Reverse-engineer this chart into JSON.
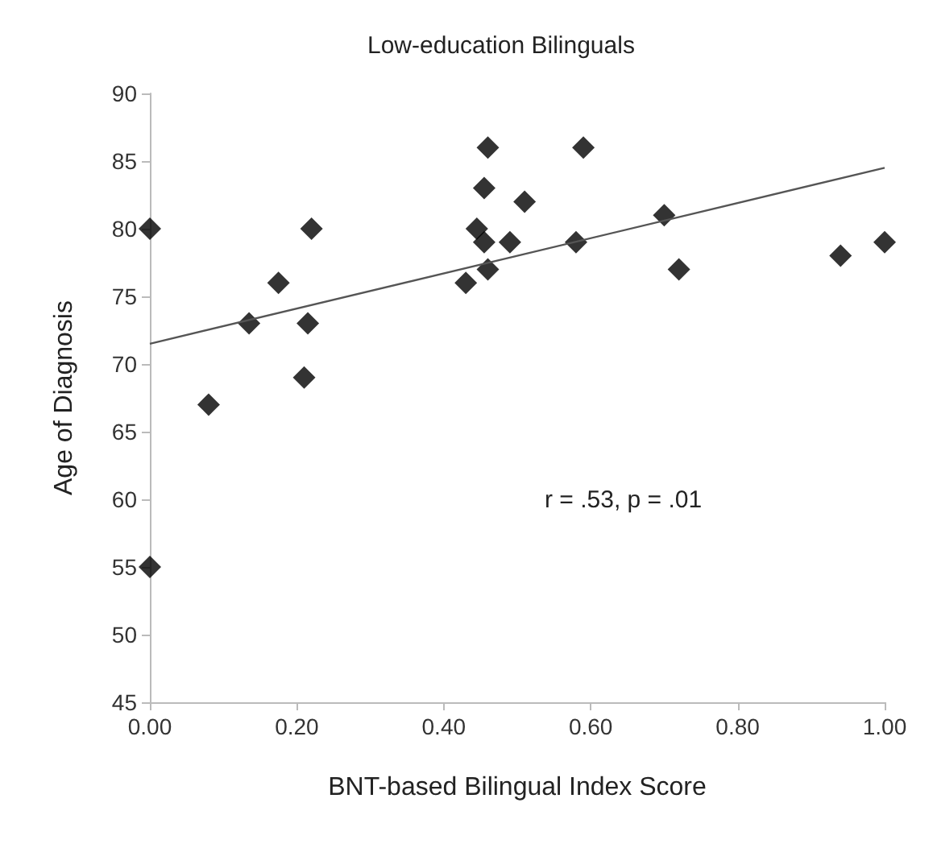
{
  "chart_data": {
    "type": "scatter",
    "title": "Low-education Bilinguals",
    "xlabel": "BNT-based Bilingual Index Score",
    "ylabel": "Age of Diagnosis",
    "series": [
      {
        "color": "#000000",
        "x": [
          0,
          0,
          0.08,
          0.135,
          0.175,
          0.21,
          0.215,
          0.22,
          0.43,
          0.445,
          0.455,
          0.46,
          0.455,
          0.46,
          0.49,
          0.51,
          0.58,
          0.59,
          0.7,
          0.72,
          0.94,
          1.0
        ],
        "values": [
          80,
          55,
          67,
          73,
          76,
          69,
          73,
          80,
          76,
          80,
          83,
          86,
          79,
          77,
          79,
          82,
          79,
          86,
          81,
          77,
          78,
          79
        ]
      },
      {
        "type": "line",
        "marker": "none",
        "color": "#555555",
        "x": [
          0,
          1.0
        ],
        "values": [
          71.5,
          84.5
        ]
      }
    ],
    "xlim": [
      0,
      1.0
    ],
    "xticks": [
      {
        "value": 0,
        "label": "0.00"
      },
      {
        "value": 0.2,
        "label": "0.20"
      },
      {
        "value": 0.4,
        "label": "0.40"
      },
      {
        "value": 0.6,
        "label": "0.60"
      },
      {
        "value": 0.8,
        "label": "0.80"
      },
      {
        "value": 1.0,
        "label": "1.00"
      }
    ],
    "ylim": [
      45,
      90
    ],
    "yticks": [
      45,
      50,
      55,
      60,
      65,
      70,
      75,
      80,
      85,
      90
    ],
    "annotations": [
      "r = .53, p = .01"
    ],
    "grid": false,
    "marker": "diamond",
    "line_style": "solid"
  }
}
